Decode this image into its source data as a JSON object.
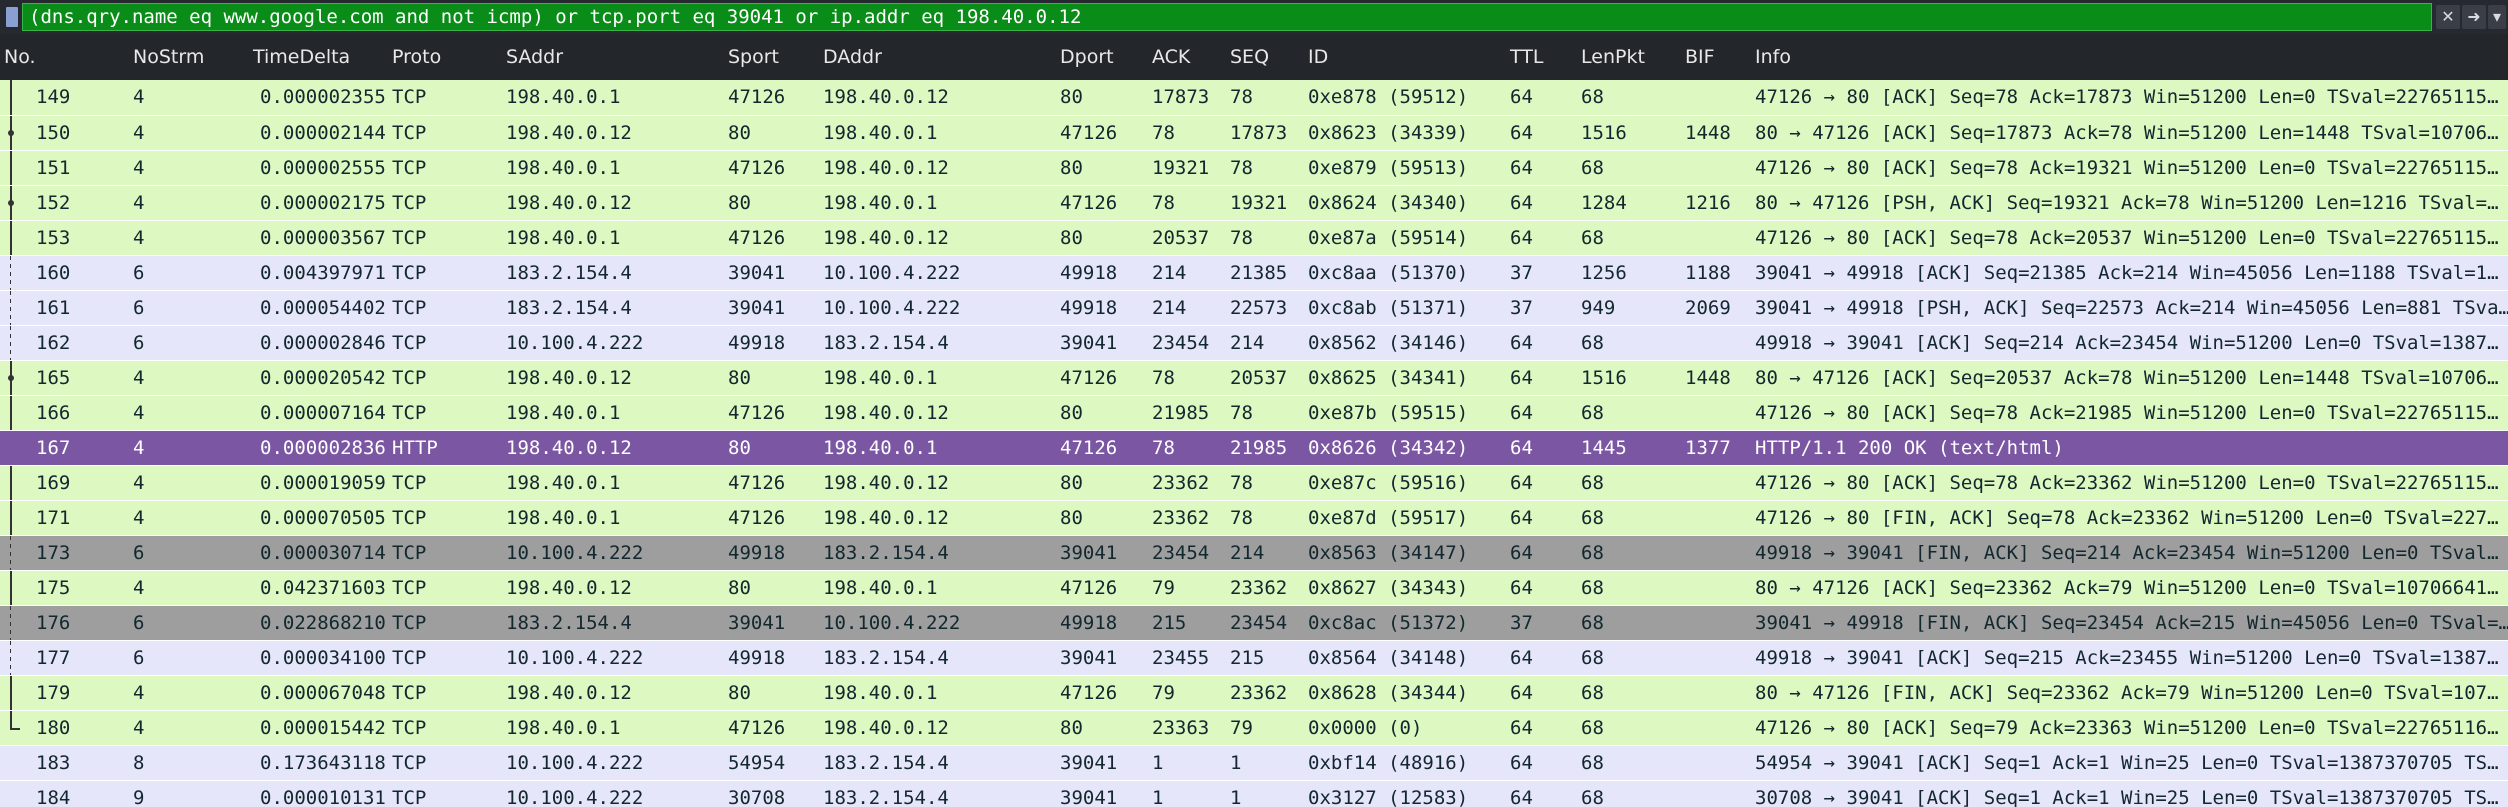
{
  "filter": {
    "expression": "(dns.qry.name eq www.google.com and not icmp) or tcp.port eq 39041 or ip.addr eq 198.40.0.12",
    "clear_icon": "close-icon",
    "apply_icon": "arrow-right-icon",
    "recent_icon": "chevron-down-icon",
    "bookmark_icon": "bookmark-icon"
  },
  "colors": {
    "green": "#ddf8c0",
    "lavender": "#e6e6fa",
    "selected": "#7b56a2",
    "gray": "#9e9e9e",
    "green_text": "#12272e",
    "selected_text": "#ffffff"
  },
  "columns": [
    "No.",
    "NoStrm",
    "TimeDelta",
    "Proto",
    "SAddr",
    "Sport",
    "DAddr",
    "Dport",
    "ACK",
    "SEQ",
    "ID",
    "TTL",
    "LenPkt",
    "BIF",
    "Info"
  ],
  "rows": [
    {
      "no": "149",
      "strm": "4",
      "td": "0.000002355",
      "proto": "TCP",
      "src": "198.40.0.1",
      "sport": "47126",
      "dst": "198.40.0.12",
      "dport": "80",
      "ack": "17873",
      "seq": "78",
      "id": "0xe878 (59512)",
      "ttl": "64",
      "len": "68",
      "bif": "",
      "info": "47126 → 80 [ACK] Seq=78 Ack=17873 Win=51200 Len=0 TSval=22765115…",
      "style": "green",
      "mark": "line"
    },
    {
      "no": "150",
      "strm": "4",
      "td": "0.000002144",
      "proto": "TCP",
      "src": "198.40.0.12",
      "sport": "80",
      "dst": "198.40.0.1",
      "dport": "47126",
      "ack": "78",
      "seq": "17873",
      "id": "0x8623 (34339)",
      "ttl": "64",
      "len": "1516",
      "bif": "1448",
      "info": "80 → 47126 [ACK] Seq=17873 Ack=78 Win=51200 Len=1448 TSval=10706…",
      "style": "green",
      "mark": "dot"
    },
    {
      "no": "151",
      "strm": "4",
      "td": "0.000002555",
      "proto": "TCP",
      "src": "198.40.0.1",
      "sport": "47126",
      "dst": "198.40.0.12",
      "dport": "80",
      "ack": "19321",
      "seq": "78",
      "id": "0xe879 (59513)",
      "ttl": "64",
      "len": "68",
      "bif": "",
      "info": "47126 → 80 [ACK] Seq=78 Ack=19321 Win=51200 Len=0 TSval=22765115…",
      "style": "green",
      "mark": "line"
    },
    {
      "no": "152",
      "strm": "4",
      "td": "0.000002175",
      "proto": "TCP",
      "src": "198.40.0.12",
      "sport": "80",
      "dst": "198.40.0.1",
      "dport": "47126",
      "ack": "78",
      "seq": "19321",
      "id": "0x8624 (34340)",
      "ttl": "64",
      "len": "1284",
      "bif": "1216",
      "info": "80 → 47126 [PSH, ACK] Seq=19321 Ack=78 Win=51200 Len=1216 TSval=…",
      "style": "green",
      "mark": "dot"
    },
    {
      "no": "153",
      "strm": "4",
      "td": "0.000003567",
      "proto": "TCP",
      "src": "198.40.0.1",
      "sport": "47126",
      "dst": "198.40.0.12",
      "dport": "80",
      "ack": "20537",
      "seq": "78",
      "id": "0xe87a (59514)",
      "ttl": "64",
      "len": "68",
      "bif": "",
      "info": "47126 → 80 [ACK] Seq=78 Ack=20537 Win=51200 Len=0 TSval=22765115…",
      "style": "green",
      "mark": "line"
    },
    {
      "no": "160",
      "strm": "6",
      "td": "0.004397971",
      "proto": "TCP",
      "src": "183.2.154.4",
      "sport": "39041",
      "dst": "10.100.4.222",
      "dport": "49918",
      "ack": "214",
      "seq": "21385",
      "id": "0xc8aa (51370)",
      "ttl": "37",
      "len": "1256",
      "bif": "1188",
      "info": "39041 → 49918 [ACK] Seq=21385 Ack=214 Win=45056 Len=1188 TSval=1…",
      "style": "lavender",
      "mark": "dash"
    },
    {
      "no": "161",
      "strm": "6",
      "td": "0.000054402",
      "proto": "TCP",
      "src": "183.2.154.4",
      "sport": "39041",
      "dst": "10.100.4.222",
      "dport": "49918",
      "ack": "214",
      "seq": "22573",
      "id": "0xc8ab (51371)",
      "ttl": "37",
      "len": "949",
      "bif": "2069",
      "info": "39041 → 49918 [PSH, ACK] Seq=22573 Ack=214 Win=45056 Len=881 TSva…",
      "style": "lavender",
      "mark": "dash"
    },
    {
      "no": "162",
      "strm": "6",
      "td": "0.000002846",
      "proto": "TCP",
      "src": "10.100.4.222",
      "sport": "49918",
      "dst": "183.2.154.4",
      "dport": "39041",
      "ack": "23454",
      "seq": "214",
      "id": "0x8562 (34146)",
      "ttl": "64",
      "len": "68",
      "bif": "",
      "info": "49918 → 39041 [ACK] Seq=214 Ack=23454 Win=51200 Len=0 TSval=1387…",
      "style": "lavender",
      "mark": "dash"
    },
    {
      "no": "165",
      "strm": "4",
      "td": "0.000020542",
      "proto": "TCP",
      "src": "198.40.0.12",
      "sport": "80",
      "dst": "198.40.0.1",
      "dport": "47126",
      "ack": "78",
      "seq": "20537",
      "id": "0x8625 (34341)",
      "ttl": "64",
      "len": "1516",
      "bif": "1448",
      "info": "80 → 47126 [ACK] Seq=20537 Ack=78 Win=51200 Len=1448 TSval=10706…",
      "style": "green",
      "mark": "dot"
    },
    {
      "no": "166",
      "strm": "4",
      "td": "0.000007164",
      "proto": "TCP",
      "src": "198.40.0.1",
      "sport": "47126",
      "dst": "198.40.0.12",
      "dport": "80",
      "ack": "21985",
      "seq": "78",
      "id": "0xe87b (59515)",
      "ttl": "64",
      "len": "68",
      "bif": "",
      "info": "47126 → 80 [ACK] Seq=78 Ack=21985 Win=51200 Len=0 TSval=22765115…",
      "style": "green",
      "mark": "line"
    },
    {
      "no": "167",
      "strm": "4",
      "td": "0.000002836",
      "proto": "HTTP",
      "src": "198.40.0.12",
      "sport": "80",
      "dst": "198.40.0.1",
      "dport": "47126",
      "ack": "78",
      "seq": "21985",
      "id": "0x8626 (34342)",
      "ttl": "64",
      "len": "1445",
      "bif": "1377",
      "info": "HTTP/1.1 200 OK  (text/html)",
      "style": "selected",
      "mark": "arrow"
    },
    {
      "no": "169",
      "strm": "4",
      "td": "0.000019059",
      "proto": "TCP",
      "src": "198.40.0.1",
      "sport": "47126",
      "dst": "198.40.0.12",
      "dport": "80",
      "ack": "23362",
      "seq": "78",
      "id": "0xe87c (59516)",
      "ttl": "64",
      "len": "68",
      "bif": "",
      "info": "47126 → 80 [ACK] Seq=78 Ack=23362 Win=51200 Len=0 TSval=22765115…",
      "style": "green",
      "mark": "line"
    },
    {
      "no": "171",
      "strm": "4",
      "td": "0.000070505",
      "proto": "TCP",
      "src": "198.40.0.1",
      "sport": "47126",
      "dst": "198.40.0.12",
      "dport": "80",
      "ack": "23362",
      "seq": "78",
      "id": "0xe87d (59517)",
      "ttl": "64",
      "len": "68",
      "bif": "",
      "info": "47126 → 80 [FIN, ACK] Seq=78 Ack=23362 Win=51200 Len=0 TSval=227…",
      "style": "green",
      "mark": "line"
    },
    {
      "no": "173",
      "strm": "6",
      "td": "0.000030714",
      "proto": "TCP",
      "src": "10.100.4.222",
      "sport": "49918",
      "dst": "183.2.154.4",
      "dport": "39041",
      "ack": "23454",
      "seq": "214",
      "id": "0x8563 (34147)",
      "ttl": "64",
      "len": "68",
      "bif": "",
      "info": "49918 → 39041 [FIN, ACK] Seq=214 Ack=23454 Win=51200 Len=0 TSval…",
      "style": "gray",
      "mark": "dash"
    },
    {
      "no": "175",
      "strm": "4",
      "td": "0.042371603",
      "proto": "TCP",
      "src": "198.40.0.12",
      "sport": "80",
      "dst": "198.40.0.1",
      "dport": "47126",
      "ack": "79",
      "seq": "23362",
      "id": "0x8627 (34343)",
      "ttl": "64",
      "len": "68",
      "bif": "",
      "info": "80 → 47126 [ACK] Seq=23362 Ack=79 Win=51200 Len=0 TSval=10706641…",
      "style": "green",
      "mark": "line"
    },
    {
      "no": "176",
      "strm": "6",
      "td": "0.022868210",
      "proto": "TCP",
      "src": "183.2.154.4",
      "sport": "39041",
      "dst": "10.100.4.222",
      "dport": "49918",
      "ack": "215",
      "seq": "23454",
      "id": "0xc8ac (51372)",
      "ttl": "37",
      "len": "68",
      "bif": "",
      "info": "39041 → 49918 [FIN, ACK] Seq=23454 Ack=215 Win=45056 Len=0 TSval=…",
      "style": "gray",
      "mark": "dash"
    },
    {
      "no": "177",
      "strm": "6",
      "td": "0.000034100",
      "proto": "TCP",
      "src": "10.100.4.222",
      "sport": "49918",
      "dst": "183.2.154.4",
      "dport": "39041",
      "ack": "23455",
      "seq": "215",
      "id": "0x8564 (34148)",
      "ttl": "64",
      "len": "68",
      "bif": "",
      "info": "49918 → 39041 [ACK] Seq=215 Ack=23455 Win=51200 Len=0 TSval=1387…",
      "style": "lavender",
      "mark": "dash"
    },
    {
      "no": "179",
      "strm": "4",
      "td": "0.000067048",
      "proto": "TCP",
      "src": "198.40.0.12",
      "sport": "80",
      "dst": "198.40.0.1",
      "dport": "47126",
      "ack": "79",
      "seq": "23362",
      "id": "0x8628 (34344)",
      "ttl": "64",
      "len": "68",
      "bif": "",
      "info": "80 → 47126 [FIN, ACK] Seq=23362 Ack=79 Win=51200 Len=0 TSval=107…",
      "style": "green",
      "mark": "line"
    },
    {
      "no": "180",
      "strm": "4",
      "td": "0.000015442",
      "proto": "TCP",
      "src": "198.40.0.1",
      "sport": "47126",
      "dst": "198.40.0.12",
      "dport": "80",
      "ack": "23363",
      "seq": "79",
      "id": "0x0000 (0)",
      "ttl": "64",
      "len": "68",
      "bif": "",
      "info": "47126 → 80 [ACK] Seq=79 Ack=23363 Win=51200 Len=0 TSval=22765116…",
      "style": "green",
      "mark": "end"
    },
    {
      "no": "183",
      "strm": "8",
      "td": "0.173643118",
      "proto": "TCP",
      "src": "10.100.4.222",
      "sport": "54954",
      "dst": "183.2.154.4",
      "dport": "39041",
      "ack": "1",
      "seq": "1",
      "id": "0xbf14 (48916)",
      "ttl": "64",
      "len": "68",
      "bif": "",
      "info": "54954 → 39041 [ACK] Seq=1 Ack=1 Win=25 Len=0 TSval=1387370705 TS…",
      "style": "lavender",
      "mark": "none"
    },
    {
      "no": "184",
      "strm": "9",
      "td": "0.000010131",
      "proto": "TCP",
      "src": "10.100.4.222",
      "sport": "30708",
      "dst": "183.2.154.4",
      "dport": "39041",
      "ack": "1",
      "seq": "1",
      "id": "0x3127 (12583)",
      "ttl": "64",
      "len": "68",
      "bif": "",
      "info": "30708 → 39041 [ACK] Seq=1 Ack=1 Win=25 Len=0 TSval=1387370705 TS…",
      "style": "lavender",
      "mark": "none"
    }
  ]
}
